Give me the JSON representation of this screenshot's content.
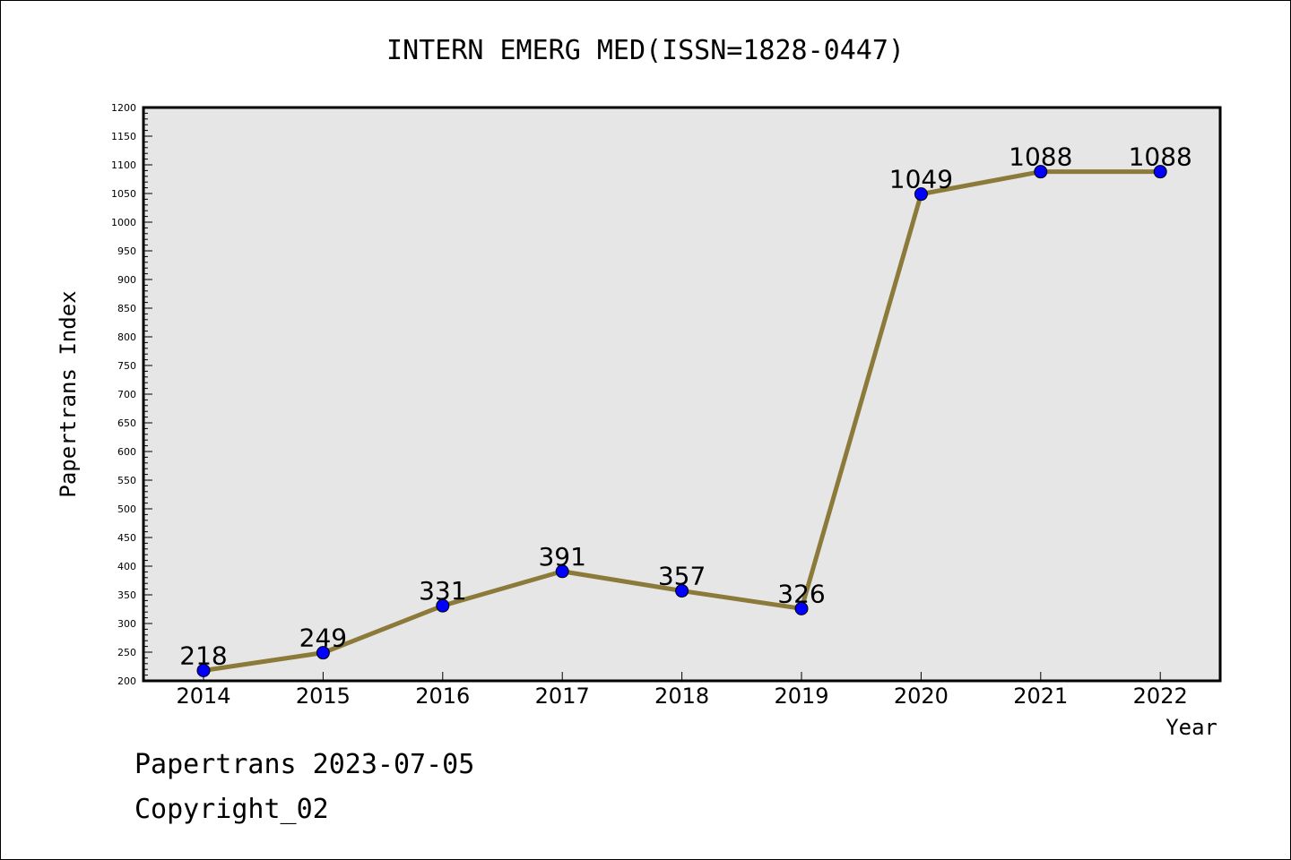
{
  "chart_data": {
    "type": "line",
    "title": "INTERN EMERG MED(ISSN=1828-0447)",
    "xlabel": "Year",
    "ylabel": "Papertrans Index",
    "categories": [
      "2014",
      "2015",
      "2016",
      "2017",
      "2018",
      "2019",
      "2020",
      "2021",
      "2022"
    ],
    "series": [
      {
        "values": [
          218,
          249,
          331,
          391,
          357,
          326,
          1049,
          1088,
          1088
        ]
      }
    ],
    "ylim": [
      200,
      1200
    ],
    "y_ticks": [
      "200",
      "250",
      "300",
      "350",
      "400",
      "450",
      "500",
      "550",
      "600",
      "650",
      "700",
      "750",
      "800",
      "850",
      "900",
      "950",
      "1000",
      "1050",
      "1100",
      "1150",
      "1200"
    ],
    "grid": false,
    "line_color": "#8c7a3a",
    "marker_color": "#0000ff",
    "plot_background": "#e6e6e6"
  },
  "footer": {
    "line1": "Papertrans 2023-07-05",
    "line2": "Copyright_02"
  }
}
